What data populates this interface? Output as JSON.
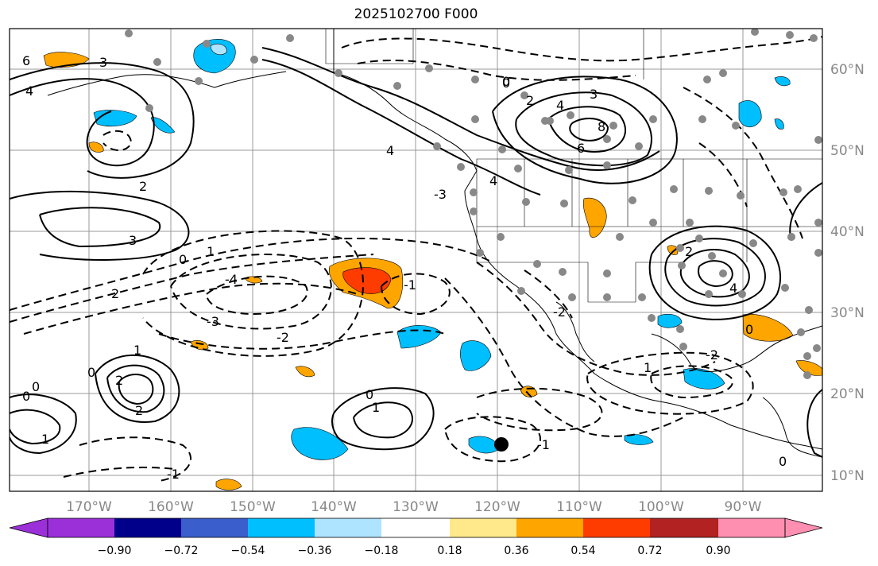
{
  "title": "2025102700 F000",
  "map": {
    "lon_labels": [
      "170°W",
      "160°W",
      "150°W",
      "140°W",
      "130°W",
      "120°W",
      "110°W",
      "100°W",
      "90°W"
    ],
    "lat_labels": [
      "60°N",
      "50°N",
      "40°N",
      "30°N",
      "20°N",
      "10°N"
    ],
    "contour_labels": [
      "6",
      "4",
      "3",
      "2",
      "1",
      "0",
      "-1",
      "-2",
      "-3",
      "-4",
      "8"
    ],
    "marker": "station-dot"
  },
  "colorbar": {
    "ticks": [
      "−0.90",
      "−0.72",
      "−0.54",
      "−0.36",
      "−0.18",
      "0.18",
      "0.36",
      "0.54",
      "0.72",
      "0.90"
    ],
    "colors": [
      "#9b30d9",
      "#00008b",
      "#3a5fcd",
      "#00bfff",
      "#aee4ff",
      "#ffffff",
      "#ffe98a",
      "#ffa500",
      "#ff3c00",
      "#b22222",
      "#ff8fb1"
    ]
  }
}
